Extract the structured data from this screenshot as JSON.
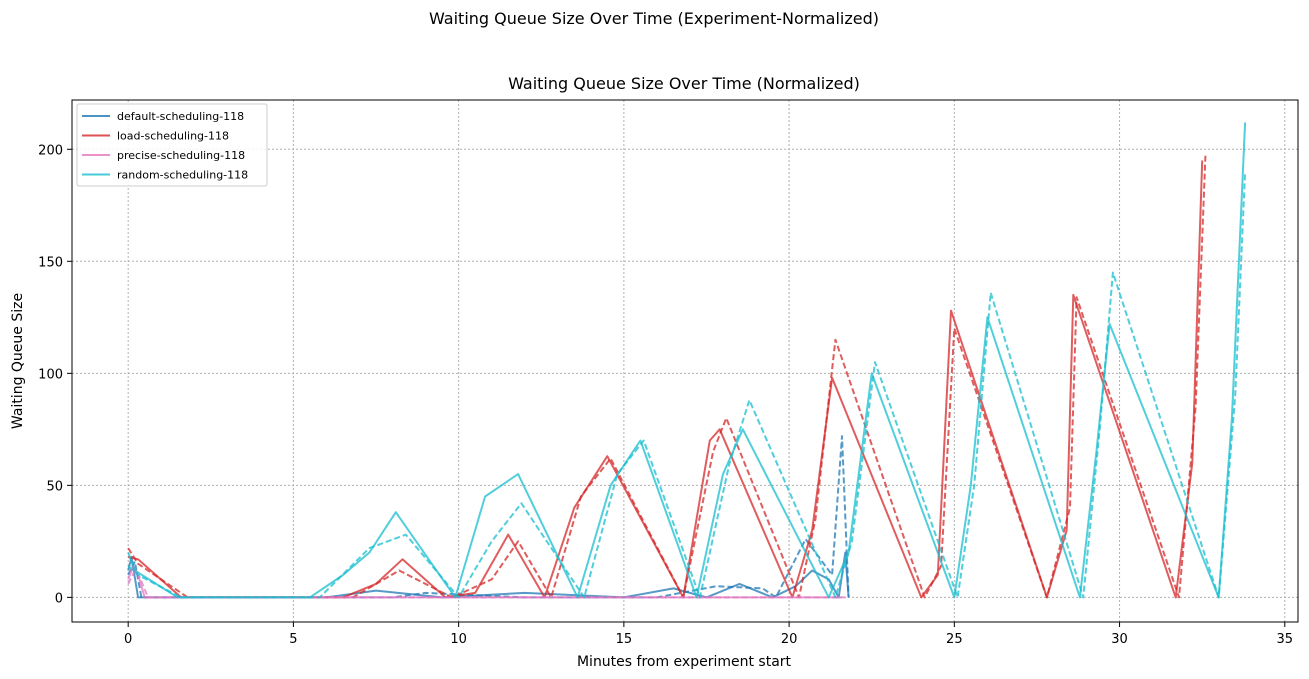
{
  "figure": {
    "suptitle": "Waiting Queue Size Over Time (Experiment-Normalized)"
  },
  "chart_data": {
    "type": "line",
    "title": "Waiting Queue Size Over Time (Normalized)",
    "xlabel": "Minutes from experiment start",
    "ylabel": "Waiting Queue Size",
    "xlim": [
      -1.7,
      35.4
    ],
    "ylim": [
      -11,
      222
    ],
    "xticks": [
      0,
      5,
      10,
      15,
      20,
      25,
      30,
      35
    ],
    "yticks": [
      0,
      50,
      100,
      150,
      200
    ],
    "grid": true,
    "legend_position": "top-left",
    "series": [
      {
        "name": "default-scheduling-118",
        "color": "#1f77b4",
        "runs": [
          {
            "style": "solid",
            "x": [
              0,
              0.1,
              0.3,
              6,
              7.5,
              9.5,
              12,
              15,
              16.5,
              17.5,
              18.5,
              19.5,
              20.2,
              20.7,
              21.2,
              21.5,
              21.7,
              21.8
            ],
            "y": [
              12,
              18,
              0,
              0,
              3,
              0,
              2,
              0,
              4,
              0,
              6,
              0,
              5,
              12,
              8,
              0,
              20,
              0
            ]
          },
          {
            "style": "dashed",
            "x": [
              0,
              0.2,
              0.4,
              8,
              9,
              12,
              16,
              17.8,
              19.2,
              19.6,
              20.5,
              21.3,
              21.6,
              21.8
            ],
            "y": [
              10,
              16,
              0,
              0,
              2,
              0,
              0,
              5,
              4,
              0,
              26,
              10,
              72,
              0
            ]
          }
        ]
      },
      {
        "name": "load-scheduling-118",
        "color": "#d62728",
        "runs": [
          {
            "style": "solid",
            "x": [
              0,
              0.3,
              1.6,
              6.5,
              7.5,
              8.3,
              9.6,
              10.5,
              11.5,
              12.6,
              13.5,
              14.5,
              16.8,
              17.6,
              17.9,
              20.1,
              20.7,
              21.3,
              24,
              24.5,
              24.9,
              27.8,
              28.4,
              28.6,
              31.7,
              32.2,
              32.5
            ],
            "y": [
              18,
              17,
              0,
              0,
              6,
              17,
              0,
              2,
              28,
              0,
              40,
              63,
              0,
              70,
              75,
              0,
              30,
              98,
              0,
              10,
              128,
              0,
              30,
              135,
              0,
              60,
              195
            ]
          },
          {
            "style": "dashed",
            "x": [
              0,
              0.3,
              1.8,
              6.8,
              8.2,
              9.8,
              11,
              11.8,
              12.8,
              13.7,
              14.6,
              16.8,
              17.7,
              18.1,
              20.3,
              20.8,
              21.4,
              24.1,
              24.6,
              25,
              27.8,
              28.5,
              28.7,
              31.8,
              32.3,
              32.6
            ],
            "y": [
              22,
              15,
              0,
              0,
              12,
              0,
              8,
              25,
              0,
              45,
              62,
              0,
              65,
              80,
              0,
              35,
              115,
              0,
              14,
              120,
              0,
              40,
              134,
              0,
              85,
              198
            ]
          }
        ]
      },
      {
        "name": "precise-scheduling-118",
        "color": "#e377c2",
        "runs": [
          {
            "style": "solid",
            "x": [
              0,
              0.15,
              0.3,
              0.5,
              21.7
            ],
            "y": [
              8,
              14,
              10,
              0,
              0
            ]
          },
          {
            "style": "dashed",
            "x": [
              0,
              0.2,
              0.35,
              0.6,
              21.6
            ],
            "y": [
              6,
              12,
              9,
              0,
              0
            ]
          }
        ]
      },
      {
        "name": "random-scheduling-118",
        "color": "#17becf",
        "runs": [
          {
            "style": "solid",
            "x": [
              0,
              0.2,
              1.5,
              5.5,
              6.5,
              7.3,
              8.1,
              9.9,
              10.8,
              11.8,
              13.6,
              14.6,
              15.5,
              17.2,
              18,
              18.6,
              21.2,
              21.8,
              22.5,
              25,
              25.5,
              26,
              28.8,
              29.3,
              29.7,
              33,
              33.4,
              33.8
            ],
            "y": [
              20,
              12,
              0,
              0,
              10,
              20,
              38,
              0,
              45,
              55,
              0,
              50,
              70,
              0,
              55,
              75,
              0,
              20,
              100,
              0,
              50,
              125,
              0,
              65,
              122,
              0,
              80,
              212
            ]
          },
          {
            "style": "dashed",
            "x": [
              0,
              0.3,
              1.6,
              5.8,
              7.3,
              8.4,
              10,
              11,
              11.9,
              13.8,
              14.8,
              15.6,
              17.3,
              18.2,
              18.8,
              21.4,
              21.9,
              22.6,
              25.1,
              25.6,
              26.1,
              28.9,
              29.4,
              29.8,
              33,
              33.5,
              33.8
            ],
            "y": [
              14,
              10,
              0,
              0,
              22,
              28,
              0,
              25,
              42,
              0,
              55,
              70,
              0,
              60,
              88,
              0,
              25,
              105,
              0,
              50,
              136,
              0,
              75,
              145,
              0,
              90,
              190
            ]
          }
        ]
      }
    ]
  }
}
